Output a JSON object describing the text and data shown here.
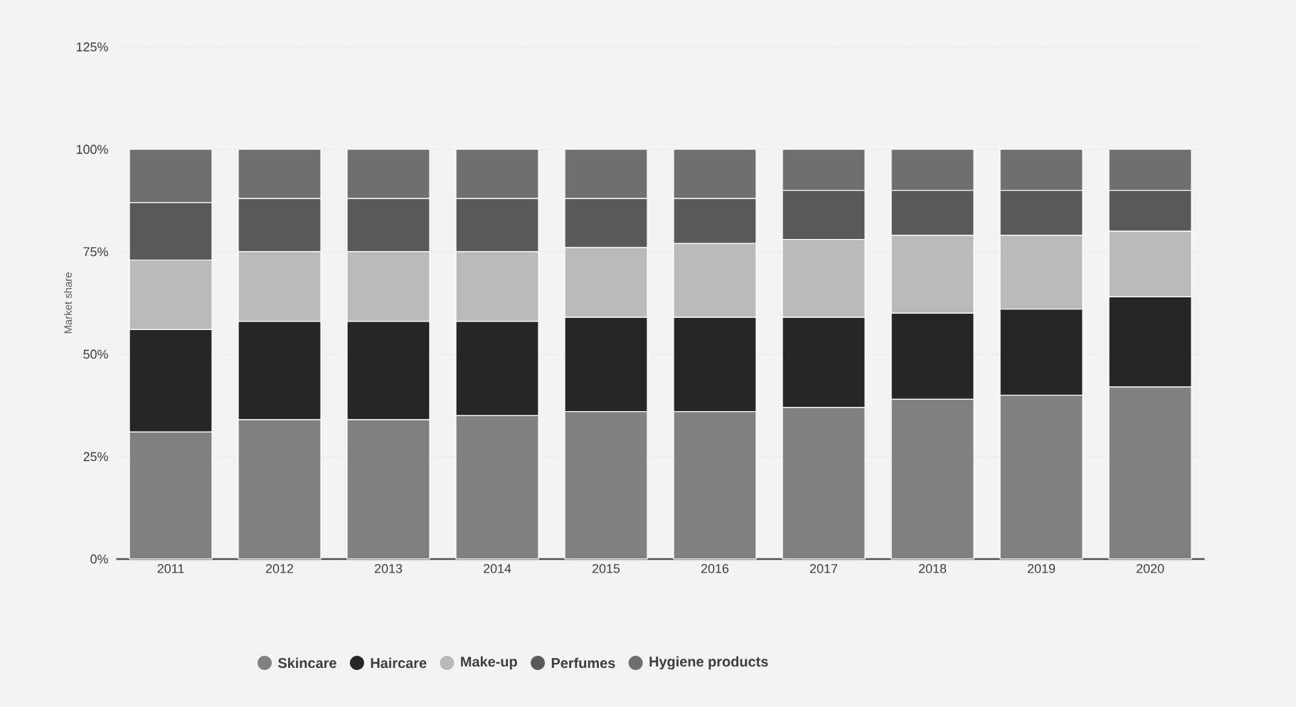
{
  "chart_data": {
    "type": "bar",
    "stacked": true,
    "ylabel": "Market share",
    "categories": [
      "2011",
      "2012",
      "2013",
      "2014",
      "2015",
      "2016",
      "2017",
      "2018",
      "2019",
      "2020"
    ],
    "series": [
      {
        "name": "Skincare",
        "color": "#808080",
        "values": [
          31,
          34,
          34,
          35,
          36,
          36,
          37,
          39,
          40,
          42
        ]
      },
      {
        "name": "Haircare",
        "color": "#262626",
        "values": [
          25,
          24,
          24,
          23,
          23,
          23,
          22,
          21,
          21,
          22
        ]
      },
      {
        "name": "Make-up",
        "color": "#b9b9b9",
        "values": [
          17,
          17,
          17,
          17,
          17,
          18,
          19,
          19,
          18,
          16
        ]
      },
      {
        "name": "Perfumes",
        "color": "#595959",
        "values": [
          14,
          13,
          13,
          13,
          12,
          11,
          12,
          11,
          11,
          10
        ]
      },
      {
        "name": "Hygiene products",
        "color": "#6f6f6f",
        "values": [
          13,
          12,
          12,
          12,
          12,
          12,
          10,
          10,
          10,
          10
        ]
      }
    ],
    "ylim": [
      0,
      125
    ],
    "yticks": [
      {
        "value": 0,
        "label": "0%"
      },
      {
        "value": 25,
        "label": "25%"
      },
      {
        "value": 50,
        "label": "50%"
      },
      {
        "value": 75,
        "label": "75%"
      },
      {
        "value": 100,
        "label": "100%"
      },
      {
        "value": 125,
        "label": "125%"
      }
    ],
    "grid": "y",
    "legend": "bottom",
    "marker": "circle"
  }
}
